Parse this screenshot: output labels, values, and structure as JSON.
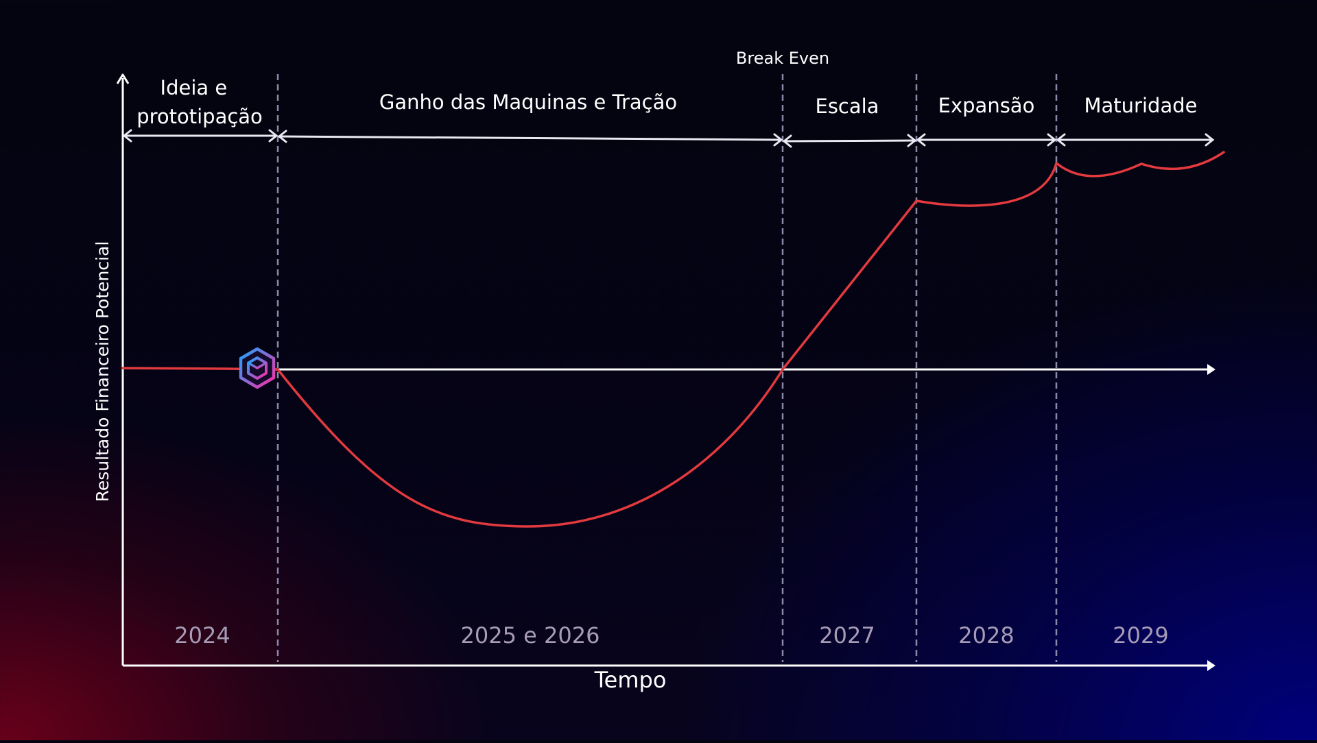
{
  "axes": {
    "y_label": "Resultado Financeiro Potencial",
    "x_label": "Tempo"
  },
  "marker": {
    "break_even_label": "Break Even"
  },
  "phases": [
    {
      "name": "Ideia e\nprototipação",
      "period": "2024"
    },
    {
      "name": "Ganho das Maquinas e Tração",
      "period": "2025 e 2026"
    },
    {
      "name": "Escala",
      "period": "2027"
    },
    {
      "name": "Expansão",
      "period": "2028"
    },
    {
      "name": "Maturidade",
      "period": "2029"
    }
  ],
  "icons": {
    "logo": "hexagon-cube-logo"
  },
  "colors": {
    "curve": "#e23a3f",
    "axis": "#ffffff",
    "divider": "#8a8aa8",
    "year_text": "#a69cb6",
    "logo_start": "#1aa6ff",
    "logo_end": "#ff2ba6"
  }
}
